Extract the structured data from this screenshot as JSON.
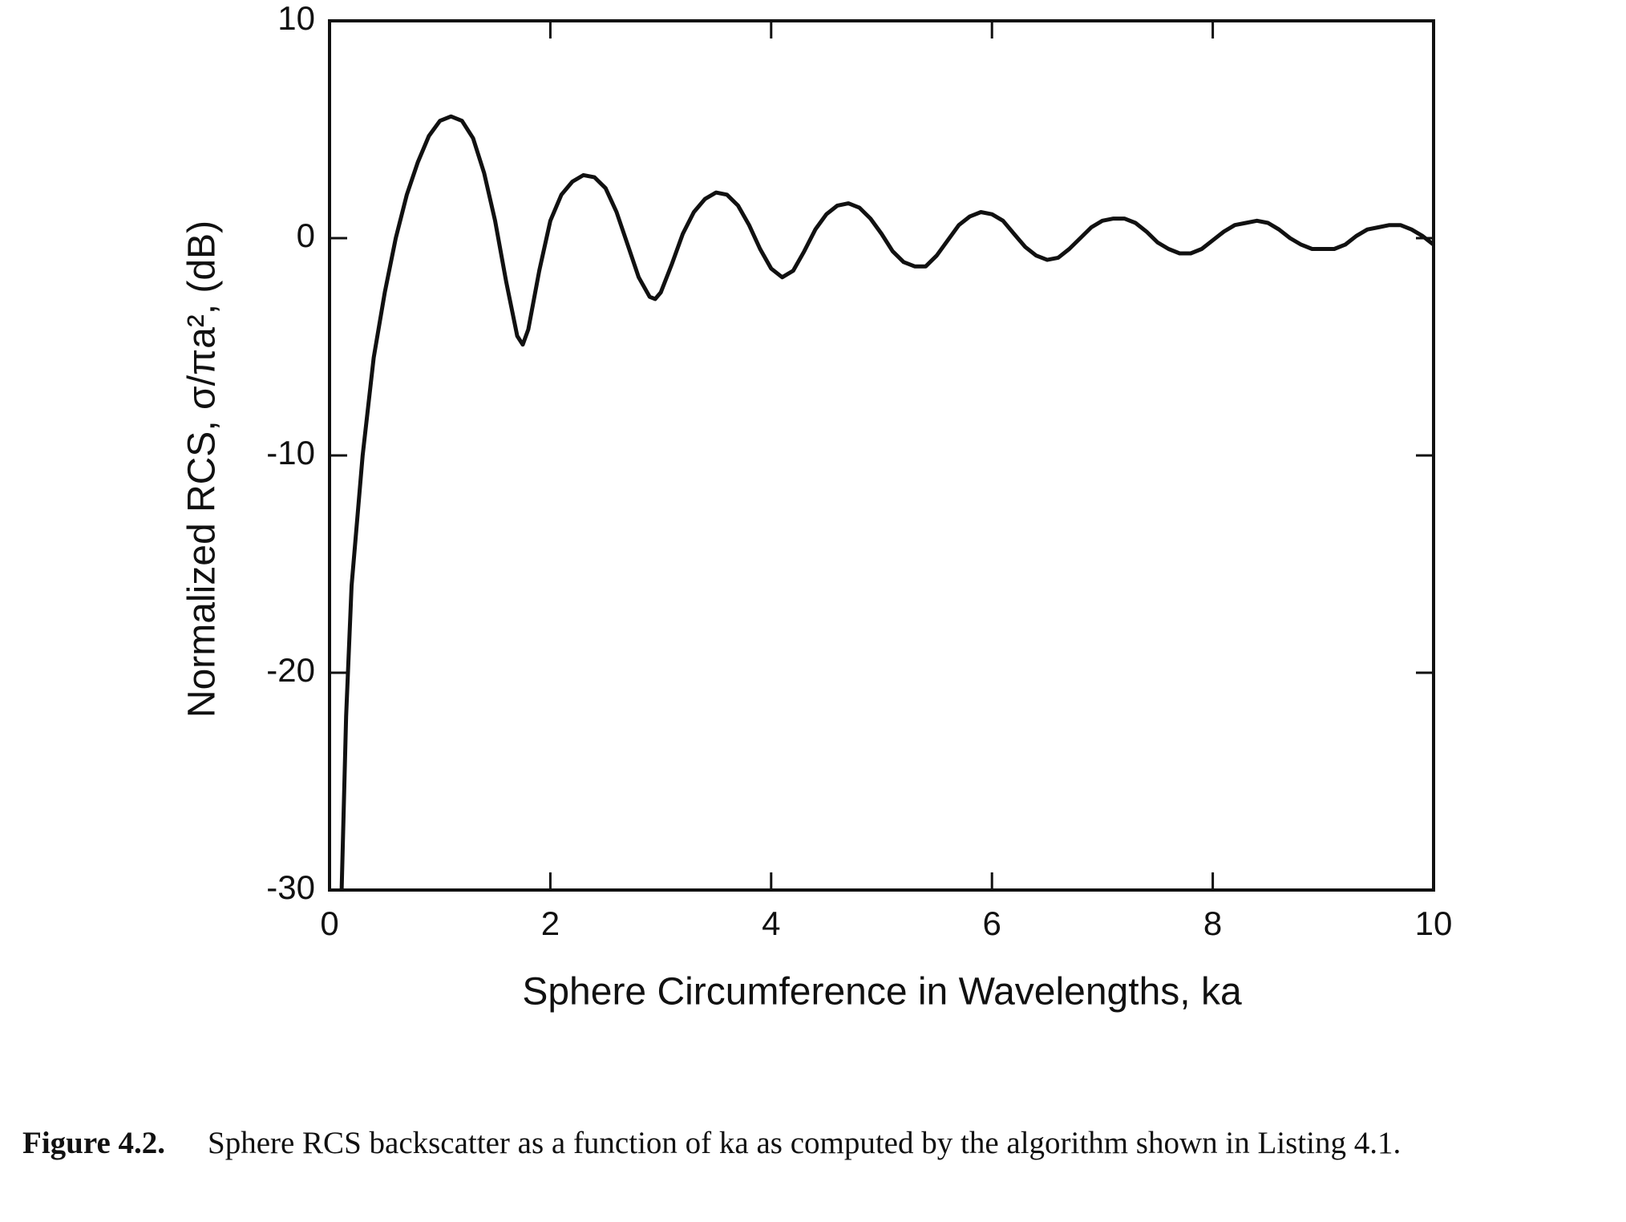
{
  "chart_data": {
    "type": "line",
    "xlabel": "Sphere Circumference in Wavelengths, ka",
    "ylabel": "Normalized RCS, σ/πa², (dB)",
    "xlim": [
      0,
      10
    ],
    "ylim": [
      -30,
      10
    ],
    "xticks": [
      0,
      2,
      4,
      6,
      8,
      10
    ],
    "yticks": [
      -30,
      -20,
      -10,
      0,
      10
    ],
    "grid": false,
    "x": [
      0.11,
      0.15,
      0.2,
      0.3,
      0.4,
      0.5,
      0.6,
      0.7,
      0.8,
      0.9,
      1.0,
      1.1,
      1.2,
      1.3,
      1.4,
      1.5,
      1.6,
      1.7,
      1.75,
      1.8,
      1.9,
      2.0,
      2.1,
      2.2,
      2.3,
      2.4,
      2.5,
      2.6,
      2.7,
      2.8,
      2.9,
      2.95,
      3.0,
      3.1,
      3.2,
      3.3,
      3.4,
      3.5,
      3.6,
      3.7,
      3.8,
      3.9,
      4.0,
      4.1,
      4.2,
      4.3,
      4.4,
      4.5,
      4.6,
      4.7,
      4.8,
      4.9,
      5.0,
      5.1,
      5.2,
      5.3,
      5.4,
      5.5,
      5.6,
      5.7,
      5.8,
      5.9,
      6.0,
      6.1,
      6.2,
      6.3,
      6.4,
      6.5,
      6.6,
      6.7,
      6.8,
      6.9,
      7.0,
      7.1,
      7.2,
      7.3,
      7.4,
      7.5,
      7.6,
      7.7,
      7.8,
      7.9,
      8.0,
      8.1,
      8.2,
      8.3,
      8.4,
      8.5,
      8.6,
      8.7,
      8.8,
      8.9,
      9.0,
      9.1,
      9.2,
      9.3,
      9.4,
      9.5,
      9.6,
      9.7,
      9.8,
      9.9,
      10.0
    ],
    "series": [
      {
        "color": "#111111",
        "values": [
          -30,
          -22,
          -16,
          -10,
          -5.5,
          -2.5,
          0,
          2,
          3.5,
          4.7,
          5.4,
          5.6,
          5.4,
          4.6,
          3,
          0.8,
          -2,
          -4.5,
          -4.9,
          -4.2,
          -1.5,
          0.8,
          2,
          2.6,
          2.9,
          2.8,
          2.3,
          1.2,
          -0.3,
          -1.8,
          -2.7,
          -2.8,
          -2.5,
          -1.2,
          0.2,
          1.2,
          1.8,
          2.1,
          2.0,
          1.5,
          0.6,
          -0.5,
          -1.4,
          -1.8,
          -1.5,
          -0.6,
          0.4,
          1.1,
          1.5,
          1.6,
          1.4,
          0.9,
          0.2,
          -0.6,
          -1.1,
          -1.3,
          -1.3,
          -0.8,
          -0.1,
          0.6,
          1.0,
          1.2,
          1.1,
          0.8,
          0.2,
          -0.4,
          -0.8,
          -1.0,
          -0.9,
          -0.5,
          0,
          0.5,
          0.8,
          0.9,
          0.9,
          0.7,
          0.3,
          -0.2,
          -0.5,
          -0.7,
          -0.7,
          -0.5,
          -0.1,
          0.3,
          0.6,
          0.7,
          0.8,
          0.7,
          0.4,
          0,
          -0.3,
          -0.5,
          -0.5,
          -0.5,
          -0.3,
          0.1,
          0.4,
          0.5,
          0.6,
          0.6,
          0.4,
          0.1,
          -0.3
        ]
      }
    ]
  },
  "caption": {
    "label": "Figure 4.2.",
    "text": "Sphere RCS backscatter as a function of ka as computed by the algorithm shown in Listing 4.1."
  }
}
